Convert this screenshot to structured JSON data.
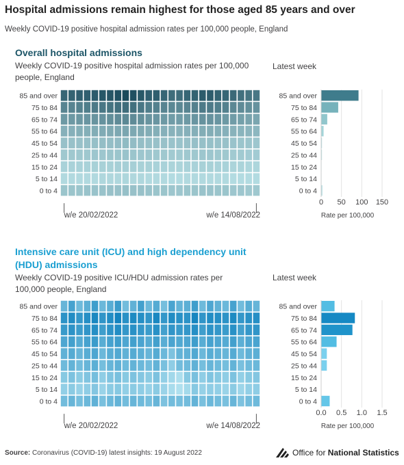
{
  "header": {
    "title": "Hospital admissions remain highest for those aged 85 years and over",
    "subtitle": "Weekly COVID-19 positive hospital admission rates per 100,000 people, England"
  },
  "panels": [
    {
      "title_lines": [
        "Overall hospital admissions"
      ],
      "subtitle_lines": [
        "Weekly COVID-19 positive hospital admission rates per 100,000",
        "people, England"
      ],
      "latest_label": "Latest week"
    },
    {
      "title_lines": [
        "Intensive care unit (ICU) and high dependency unit",
        "(HDU) admissions"
      ],
      "subtitle_lines": [
        "Weekly COVID-19 positive ICU/HDU admission rates per",
        "100,000 people, England"
      ],
      "latest_label": "Latest week"
    }
  ],
  "chart_data": [
    {
      "type": "heatmap",
      "title": "Overall hospital admissions",
      "rows": [
        "85 and over",
        "75 to 84",
        "65 to 74",
        "55 to 64",
        "45 to 54",
        "25 to 44",
        "15 to 24",
        "5 to 14",
        "0 to 4"
      ],
      "x_tick_labels": [
        "w/e 20/02/2022",
        "w/e 14/08/2022"
      ],
      "weeks": 26,
      "row_levels": [
        [
          0.84,
          0.86,
          0.88,
          0.88,
          0.9,
          0.93,
          0.94,
          0.97,
          1.0,
          0.97,
          0.92,
          0.88,
          0.88,
          0.84,
          0.8,
          0.8,
          0.84,
          0.86,
          0.9,
          0.9,
          0.86,
          0.84,
          0.82,
          0.78,
          0.76,
          0.74
        ],
        [
          0.66,
          0.66,
          0.68,
          0.7,
          0.72,
          0.74,
          0.76,
          0.78,
          0.8,
          0.78,
          0.74,
          0.7,
          0.68,
          0.66,
          0.64,
          0.64,
          0.66,
          0.68,
          0.72,
          0.72,
          0.7,
          0.68,
          0.64,
          0.62,
          0.6,
          0.58
        ],
        [
          0.54,
          0.54,
          0.55,
          0.56,
          0.57,
          0.58,
          0.6,
          0.62,
          0.64,
          0.62,
          0.6,
          0.57,
          0.56,
          0.54,
          0.52,
          0.52,
          0.54,
          0.56,
          0.58,
          0.58,
          0.56,
          0.54,
          0.52,
          0.5,
          0.48,
          0.46
        ],
        [
          0.4,
          0.4,
          0.41,
          0.41,
          0.42,
          0.43,
          0.44,
          0.45,
          0.46,
          0.45,
          0.44,
          0.42,
          0.41,
          0.4,
          0.39,
          0.39,
          0.4,
          0.41,
          0.42,
          0.42,
          0.41,
          0.4,
          0.39,
          0.38,
          0.37,
          0.36
        ],
        [
          0.3,
          0.3,
          0.3,
          0.31,
          0.31,
          0.32,
          0.32,
          0.33,
          0.34,
          0.33,
          0.32,
          0.31,
          0.3,
          0.3,
          0.29,
          0.29,
          0.3,
          0.31,
          0.31,
          0.31,
          0.3,
          0.3,
          0.29,
          0.28,
          0.28,
          0.27
        ],
        [
          0.26,
          0.26,
          0.26,
          0.26,
          0.27,
          0.27,
          0.28,
          0.28,
          0.29,
          0.28,
          0.27,
          0.27,
          0.26,
          0.26,
          0.25,
          0.25,
          0.26,
          0.26,
          0.27,
          0.27,
          0.26,
          0.26,
          0.25,
          0.25,
          0.24,
          0.24
        ],
        [
          0.2,
          0.2,
          0.2,
          0.2,
          0.21,
          0.21,
          0.21,
          0.22,
          0.22,
          0.22,
          0.21,
          0.21,
          0.2,
          0.2,
          0.19,
          0.19,
          0.2,
          0.2,
          0.21,
          0.21,
          0.2,
          0.2,
          0.19,
          0.19,
          0.18,
          0.18
        ],
        [
          0.16,
          0.16,
          0.16,
          0.16,
          0.16,
          0.17,
          0.17,
          0.17,
          0.18,
          0.17,
          0.17,
          0.16,
          0.16,
          0.16,
          0.15,
          0.15,
          0.16,
          0.16,
          0.16,
          0.16,
          0.16,
          0.16,
          0.15,
          0.15,
          0.15,
          0.15
        ],
        [
          0.28,
          0.28,
          0.28,
          0.29,
          0.29,
          0.29,
          0.3,
          0.3,
          0.31,
          0.3,
          0.3,
          0.29,
          0.28,
          0.28,
          0.27,
          0.27,
          0.28,
          0.28,
          0.29,
          0.29,
          0.28,
          0.28,
          0.27,
          0.27,
          0.26,
          0.26
        ]
      ],
      "color_scale": {
        "low": "#cdf4f8",
        "high": "#1b4b5c"
      },
      "latest_week": {
        "type": "bar",
        "values": [
          92,
          42,
          15,
          6,
          2,
          2,
          1,
          1,
          3
        ],
        "xlim": [
          0,
          150
        ],
        "x_ticks": [
          0,
          50,
          100,
          150
        ],
        "tick_labels": [
          "0",
          "50",
          "100",
          "150"
        ],
        "xlabel": "Rate per 100,000",
        "colors": [
          "#3f7c8c",
          "#76b2bb",
          "#91c6cc",
          "#a4d4d8",
          "#b3dde0",
          "#bee3e5",
          "#c7e8ea",
          "#cdebed",
          "#b3dde0"
        ]
      }
    },
    {
      "type": "heatmap",
      "title": "Intensive care unit (ICU) and high dependency unit (HDU) admissions",
      "rows": [
        "85 and over",
        "75 to 84",
        "65 to 74",
        "55 to 64",
        "45 to 54",
        "25 to 44",
        "15 to 24",
        "5 to 14",
        "0 to 4"
      ],
      "x_tick_labels": [
        "w/e 20/02/2022",
        "w/e 14/08/2022"
      ],
      "weeks": 26,
      "row_levels": [
        [
          0.52,
          0.7,
          0.48,
          0.58,
          0.74,
          0.5,
          0.6,
          0.76,
          0.46,
          0.56,
          0.72,
          0.5,
          0.62,
          0.44,
          0.68,
          0.54,
          0.58,
          0.74,
          0.48,
          0.66,
          0.56,
          0.5,
          0.7,
          0.46,
          0.6,
          0.52
        ],
        [
          0.84,
          0.9,
          0.8,
          0.88,
          0.94,
          0.82,
          0.9,
          0.98,
          0.86,
          0.92,
          0.88,
          0.82,
          0.94,
          0.8,
          0.9,
          0.86,
          0.84,
          0.96,
          0.82,
          0.9,
          0.88,
          0.84,
          0.92,
          0.8,
          0.86,
          0.88
        ],
        [
          0.78,
          0.84,
          0.76,
          0.82,
          0.88,
          0.74,
          0.84,
          0.9,
          0.8,
          0.86,
          0.8,
          0.76,
          0.86,
          0.72,
          0.82,
          0.78,
          0.8,
          0.88,
          0.74,
          0.84,
          0.8,
          0.76,
          0.86,
          0.72,
          0.8,
          0.82
        ],
        [
          0.66,
          0.72,
          0.62,
          0.7,
          0.76,
          0.6,
          0.7,
          0.74,
          0.66,
          0.72,
          0.68,
          0.62,
          0.72,
          0.6,
          0.68,
          0.64,
          0.66,
          0.74,
          0.6,
          0.7,
          0.66,
          0.62,
          0.72,
          0.58,
          0.66,
          0.68
        ],
        [
          0.56,
          0.62,
          0.52,
          0.6,
          0.66,
          0.5,
          0.6,
          0.64,
          0.56,
          0.62,
          0.58,
          0.52,
          0.62,
          0.5,
          0.4,
          0.54,
          0.56,
          0.64,
          0.5,
          0.6,
          0.56,
          0.52,
          0.62,
          0.48,
          0.56,
          0.58
        ],
        [
          0.48,
          0.54,
          0.46,
          0.52,
          0.58,
          0.44,
          0.52,
          0.56,
          0.48,
          0.54,
          0.5,
          0.46,
          0.54,
          0.42,
          0.3,
          0.46,
          0.48,
          0.56,
          0.44,
          0.52,
          0.48,
          0.44,
          0.54,
          0.42,
          0.48,
          0.5
        ],
        [
          0.34,
          0.4,
          0.32,
          0.38,
          0.44,
          0.3,
          0.38,
          0.42,
          0.34,
          0.4,
          0.36,
          0.32,
          0.4,
          0.28,
          0.2,
          0.14,
          0.34,
          0.42,
          0.3,
          0.38,
          0.34,
          0.3,
          0.4,
          0.28,
          0.34,
          0.36
        ],
        [
          0.28,
          0.32,
          0.26,
          0.3,
          0.36,
          0.24,
          0.32,
          0.34,
          0.28,
          0.32,
          0.3,
          0.26,
          0.32,
          0.24,
          0.16,
          0.12,
          0.18,
          0.34,
          0.26,
          0.3,
          0.28,
          0.24,
          0.32,
          0.22,
          0.28,
          0.3
        ],
        [
          0.46,
          0.52,
          0.44,
          0.5,
          0.56,
          0.42,
          0.5,
          0.54,
          0.46,
          0.52,
          0.48,
          0.44,
          0.52,
          0.4,
          0.46,
          0.44,
          0.46,
          0.54,
          0.42,
          0.5,
          0.46,
          0.42,
          0.52,
          0.4,
          0.46,
          0.48
        ]
      ],
      "color_scale": {
        "low": "#c5edf5",
        "high": "#1082be"
      },
      "latest_week": {
        "type": "bar",
        "values": [
          0.33,
          0.83,
          0.77,
          0.38,
          0.14,
          0.14,
          0.0,
          0.0,
          0.21
        ],
        "xlim": [
          0,
          1.5
        ],
        "x_ticks": [
          0,
          0.5,
          1,
          1.5
        ],
        "tick_labels": [
          "0.0",
          "0.5",
          "1.0",
          "1.5"
        ],
        "xlabel": "Rate per 100,000",
        "colors": [
          "#53bde3",
          "#1689c4",
          "#1f93ca",
          "#52bde3",
          "#7ad0ee",
          "#7ad0ee",
          "#b8e6f5",
          "#b8e6f5",
          "#64c6e8"
        ]
      }
    }
  ],
  "footer": {
    "source_label": "Source:",
    "source_text": " Coronavirus (COVID-19) latest insights: 19 August 2022",
    "logo_text_plain": "Office for ",
    "logo_text_bold": "National Statistics",
    "logo_icon": "ons-logo-icon"
  },
  "colors": {
    "panel1_title": "#1c5567",
    "panel2_title": "#1a9fd1",
    "axis": "#777777",
    "grid": "#dddddd"
  }
}
